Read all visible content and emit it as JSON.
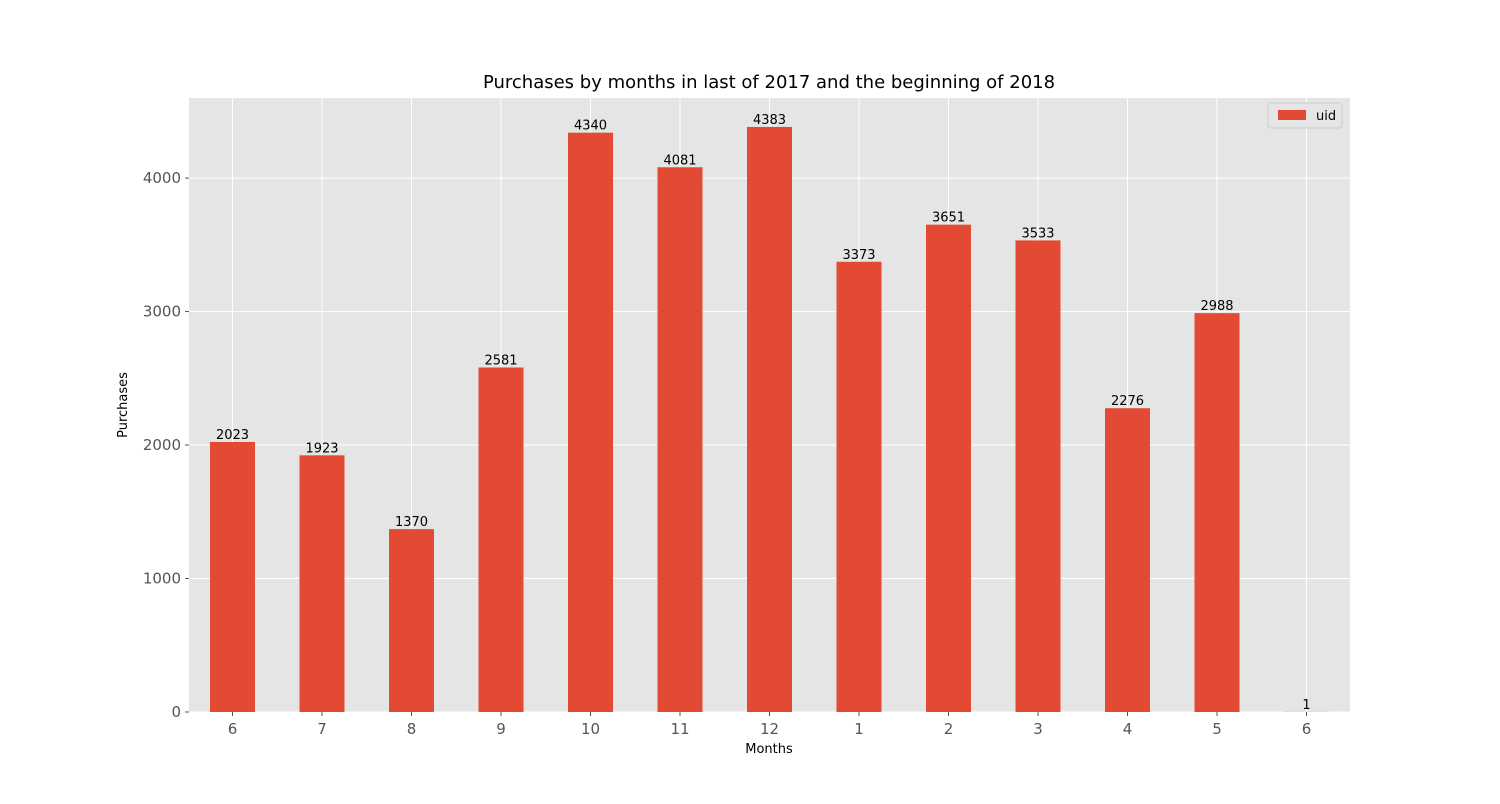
{
  "chart_data": {
    "type": "bar",
    "title": "Purchases by months in last of 2017 and the beginning of 2018",
    "xlabel": "Months",
    "ylabel": "Purchases",
    "categories": [
      "6",
      "7",
      "8",
      "9",
      "10",
      "11",
      "12",
      "1",
      "2",
      "3",
      "4",
      "5",
      "6"
    ],
    "series": [
      {
        "name": "uid",
        "values": [
          2023,
          1923,
          1370,
          2581,
          4340,
          4081,
          4383,
          3373,
          3651,
          3533,
          2276,
          2988,
          1
        ],
        "color": "#E24A33"
      }
    ],
    "data_labels": [
      "2023",
      "1923",
      "1370",
      "2581",
      "4340",
      "4081",
      "4383",
      "3373",
      "3651",
      "3533",
      "2276",
      "2988",
      "1"
    ],
    "ylim": [
      0,
      4600
    ],
    "yticks": [
      0,
      1000,
      2000,
      3000,
      4000
    ],
    "ytick_labels": [
      "0",
      "1000",
      "2000",
      "3000",
      "4000"
    ],
    "grid": true,
    "legend_position": "upper right",
    "background_color": "#E5E5E5"
  }
}
